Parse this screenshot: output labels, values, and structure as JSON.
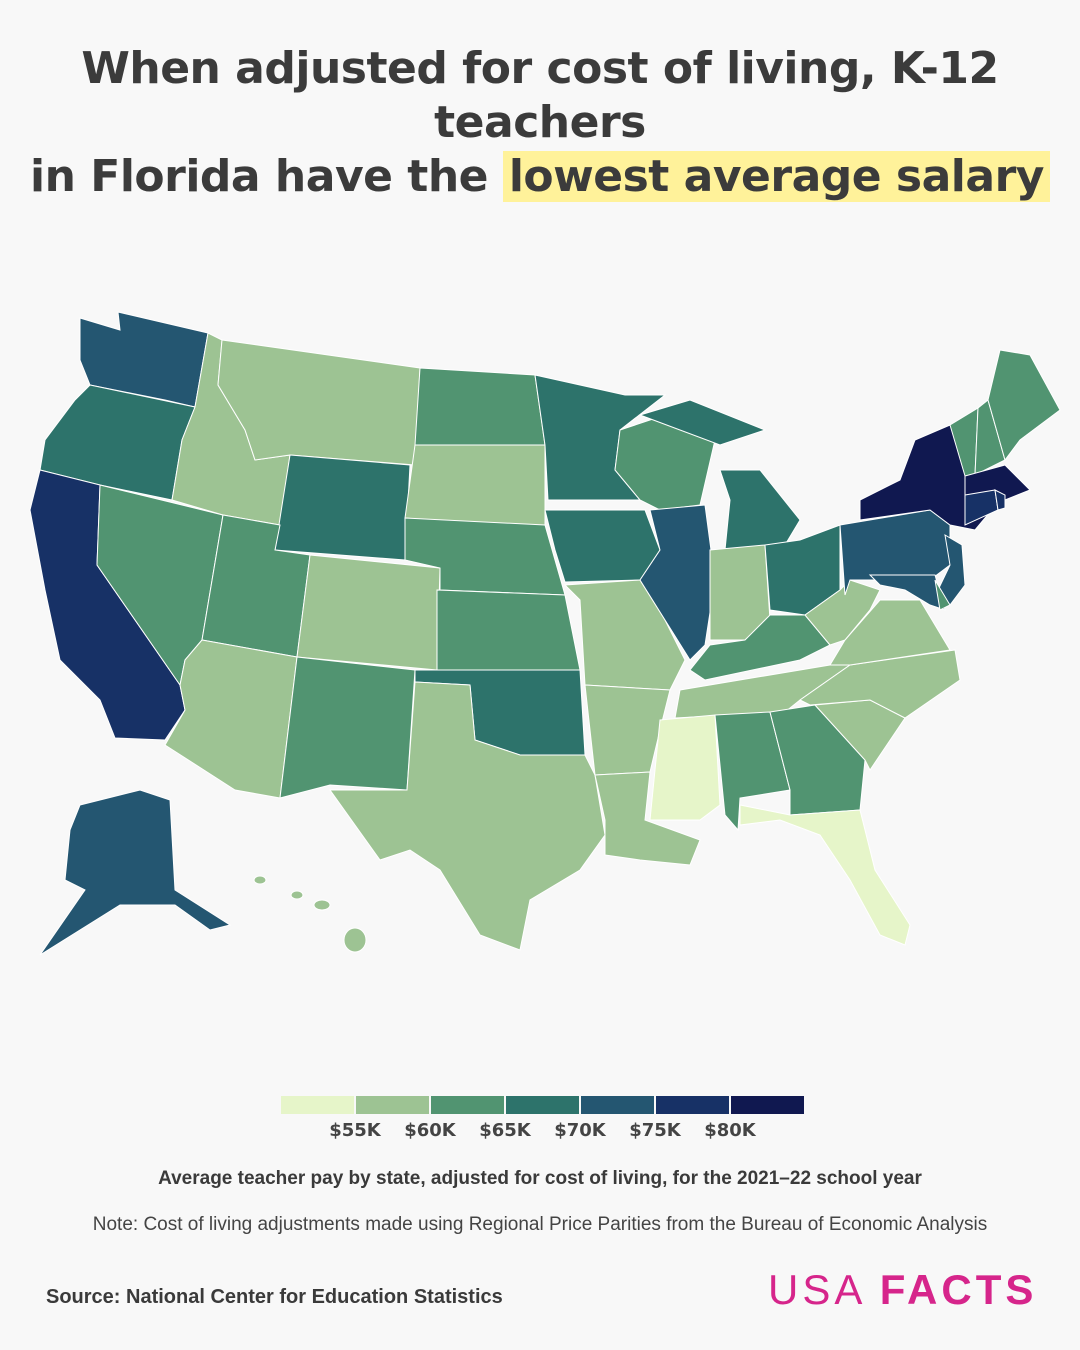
{
  "title": {
    "line1": "When adjusted for cost of living, K-12 teachers",
    "line2_prefix": "in Florida have the",
    "highlight": "lowest average salary",
    "highlight_color": "#fff29a"
  },
  "chart_data": {
    "type": "choropleth",
    "legend": {
      "colors": [
        "#e6f5c9",
        "#9dc393",
        "#519471",
        "#2d736b",
        "#245671",
        "#173166",
        "#101850"
      ],
      "tick_labels": [
        "$55K",
        "$60K",
        "$65K",
        "$70K",
        "$75K",
        "$80K"
      ],
      "bins": [
        "<$55K",
        "$55K–$60K",
        "$60K–$65K",
        "$65K–$70K",
        "$70K–$75K",
        "$75K–$80K",
        ">$80K"
      ]
    },
    "states": {
      "WA": 4,
      "OR": 3,
      "CA": 5,
      "NV": 2,
      "ID": 1,
      "MT": 1,
      "WY": 3,
      "UT": 2,
      "AZ": 1,
      "CO": 1,
      "NM": 2,
      "ND": 2,
      "SD": 1,
      "NE": 2,
      "KS": 2,
      "OK": 3,
      "TX": 1,
      "MN": 3,
      "IA": 3,
      "MO": 1,
      "AR": 1,
      "LA": 1,
      "WI": 2,
      "IL": 4,
      "MI": 3,
      "IN": 1,
      "OH": 3,
      "KY": 2,
      "TN": 1,
      "MS": 0,
      "AL": 2,
      "GA": 2,
      "FL": 0,
      "SC": 1,
      "NC": 1,
      "VA": 1,
      "WV": 1,
      "PA": 4,
      "NY": 6,
      "NJ": 4,
      "DE": 2,
      "MD": 4,
      "VT": 2,
      "NH": 2,
      "ME": 2,
      "MA": 6,
      "CT": 5,
      "RI": 5,
      "AK": 4,
      "HI": 1
    }
  },
  "subtitle": "Average teacher pay by state, adjusted for cost of living, for the 2021–22 school year",
  "note": "Note: Cost of living adjustments made using Regional Price Parities from the Bureau of Economic Analysis",
  "source": "Source: National Center for Education Statistics",
  "logo": {
    "light": "USA",
    "bold": "FACTS",
    "color": "#d6258b"
  }
}
